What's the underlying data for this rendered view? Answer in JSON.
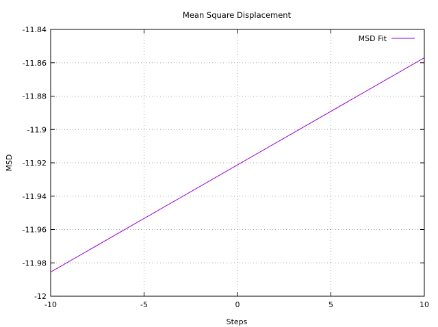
{
  "chart_data": {
    "type": "line",
    "title": "Mean Square Displacement",
    "xlabel": "Steps",
    "ylabel": "MSD",
    "xlim": [
      -10,
      10
    ],
    "ylim": [
      -12,
      -11.84
    ],
    "x_ticks": [
      -10,
      -5,
      0,
      5,
      10
    ],
    "x_tick_labels": [
      "-10",
      "-5",
      "0",
      "5",
      "10"
    ],
    "y_ticks": [
      -12,
      -11.98,
      -11.96,
      -11.94,
      -11.92,
      -11.9,
      -11.88,
      -11.86,
      -11.84
    ],
    "y_tick_labels": [
      "-12",
      "-11.98",
      "-11.96",
      "-11.94",
      "-11.92",
      "-11.9",
      "-11.88",
      "-11.86",
      "-11.84"
    ],
    "grid": true,
    "legend_position": "top-right",
    "series": [
      {
        "name": "MSD Fit",
        "color": "#9400d3",
        "x": [
          -10,
          10
        ],
        "y": [
          -11.9855,
          -11.857
        ]
      }
    ]
  }
}
